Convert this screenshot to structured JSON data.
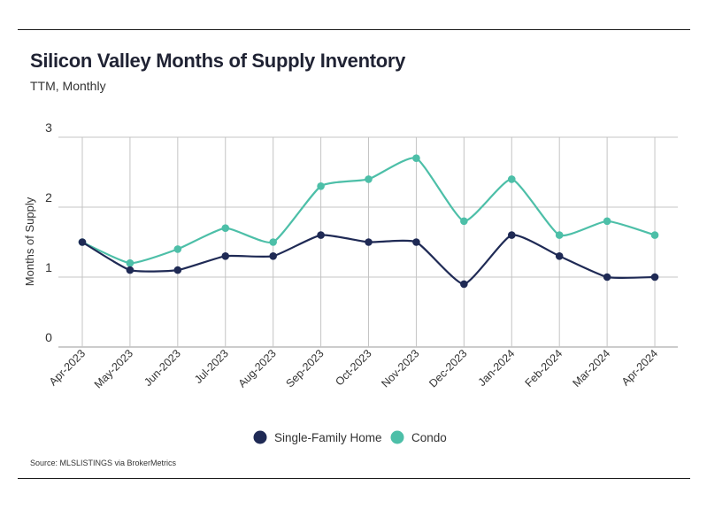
{
  "title": "Silicon Valley Months of Supply Inventory",
  "subtitle": "TTM, Monthly",
  "source": "Source:  MLSLISTINGS via BrokerMetrics",
  "chart_data": {
    "type": "line",
    "title": "Silicon Valley Months of Supply Inventory",
    "subtitle": "TTM, Monthly",
    "xlabel": "",
    "ylabel": "Months of Supply",
    "ylim": [
      0,
      3
    ],
    "yticks": [
      "0",
      "1",
      "2",
      "3"
    ],
    "grid": true,
    "legend_position": "bottom",
    "categories": [
      "Apr-2023",
      "May-2023",
      "Jun-2023",
      "Jul-2023",
      "Aug-2023",
      "Sep-2023",
      "Oct-2023",
      "Nov-2023",
      "Dec-2023",
      "Jan-2024",
      "Feb-2024",
      "Mar-2024",
      "Apr-2024"
    ],
    "series": [
      {
        "name": "Single-Family Home",
        "color": "#1f2a55",
        "values": [
          1.5,
          1.1,
          1.1,
          1.3,
          1.3,
          1.6,
          1.5,
          1.5,
          0.9,
          1.6,
          1.3,
          1.0,
          1.0
        ]
      },
      {
        "name": "Condo",
        "color": "#4dbfa8",
        "values": [
          1.5,
          1.2,
          1.4,
          1.7,
          1.5,
          2.3,
          2.4,
          2.7,
          1.8,
          2.4,
          1.6,
          1.8,
          1.6
        ]
      }
    ]
  }
}
